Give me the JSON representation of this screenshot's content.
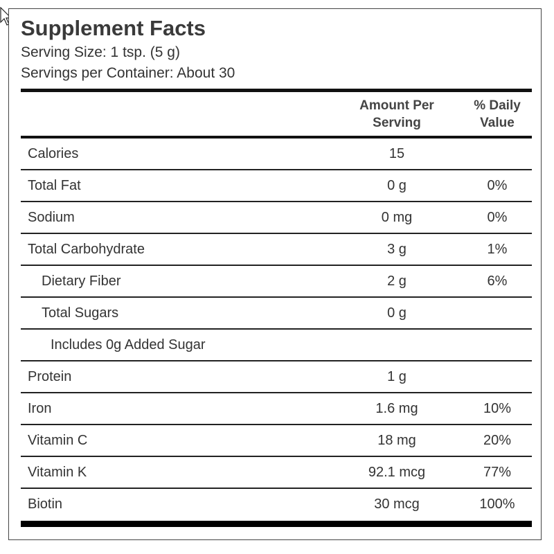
{
  "label": {
    "title": "Supplement Facts",
    "serving_size": "Serving Size: 1 tsp. (5 g)",
    "servings_per_container": "Servings per Container: About 30",
    "headers": {
      "amount": [
        "Amount Per",
        "Serving"
      ],
      "daily_value": [
        "% Daily",
        "Value"
      ]
    },
    "rows": [
      {
        "name": "Calories",
        "amount": "15",
        "dv": ""
      },
      {
        "name": "Total Fat",
        "amount": "0 g",
        "dv": "0%"
      },
      {
        "name": "Sodium",
        "amount": "0 mg",
        "dv": "0%"
      },
      {
        "name": "Total Carbohydrate",
        "amount": "3 g",
        "dv": "1%"
      },
      {
        "name": "Dietary Fiber",
        "amount": "2 g",
        "dv": "6%",
        "indent": 1
      },
      {
        "name": "Total Sugars",
        "amount": "0 g",
        "dv": "",
        "indent": 1
      },
      {
        "name": "Includes 0g Added Sugar",
        "amount": "",
        "dv": "",
        "indent": 2
      },
      {
        "name": "Protein",
        "amount": "1 g",
        "dv": ""
      },
      {
        "name": "Iron",
        "amount": "1.6 mg",
        "dv": "10%"
      },
      {
        "name": "Vitamin C",
        "amount": "18 mg",
        "dv": "20%"
      },
      {
        "name": "Vitamin K",
        "amount": "92.1 mcg",
        "dv": "77%"
      },
      {
        "name": "Biotin",
        "amount": "30 mcg",
        "dv": "100%"
      }
    ]
  },
  "cursor": {
    "icon": "mouse-pointer-icon"
  }
}
